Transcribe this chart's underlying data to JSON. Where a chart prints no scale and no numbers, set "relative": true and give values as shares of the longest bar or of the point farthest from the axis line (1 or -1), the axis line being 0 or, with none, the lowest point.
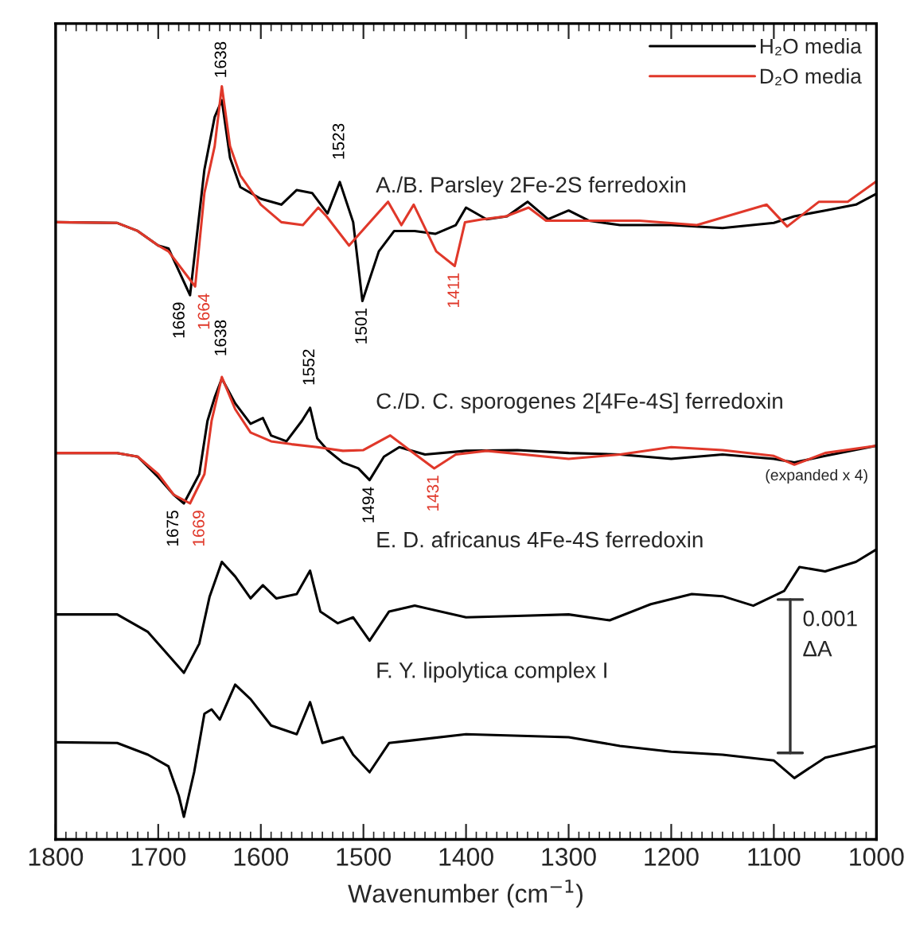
{
  "chart_data": {
    "type": "line",
    "relative": true,
    "xlabel": "Wavenumber (cm$^{−1}$)",
    "xlim": [
      1800,
      1000
    ],
    "xticks": [
      1800,
      1700,
      1600,
      1500,
      1400,
      1300,
      1200,
      1100,
      1000
    ],
    "tick_labels": "x",
    "grid": false,
    "legend": "top right",
    "series": [
      {
        "name": "H₂O media",
        "color": "#000000",
        "x": [
          1800,
          1740,
          1720,
          1700,
          1690,
          1669,
          1655,
          1645,
          1638,
          1630,
          1620,
          1600,
          1580,
          1565,
          1550,
          1535,
          1523,
          1510,
          1501,
          1485,
          1470,
          1450,
          1430,
          1410,
          1400,
          1380,
          1360,
          1340,
          1320,
          1300,
          1280,
          1250,
          1200,
          1150,
          1100,
          1080,
          1050,
          1020,
          1000
        ],
        "values": [
          0.814,
          0.813,
          0.802,
          0.782,
          0.778,
          0.714,
          0.886,
          0.958,
          0.981,
          0.902,
          0.862,
          0.846,
          0.838,
          0.858,
          0.854,
          0.826,
          0.869,
          0.814,
          0.706,
          0.774,
          0.802,
          0.802,
          0.798,
          0.81,
          0.834,
          0.818,
          0.822,
          0.842,
          0.818,
          0.83,
          0.816,
          0.81,
          0.81,
          0.806,
          0.813,
          0.822,
          0.83,
          0.838,
          0.853
        ]
      },
      {
        "name": "D₂O media",
        "color": "#e0382a",
        "x": [
          1800,
          1740,
          1720,
          1700,
          1690,
          1664,
          1655,
          1645,
          1638,
          1630,
          1620,
          1600,
          1580,
          1559,
          1544,
          1536,
          1514,
          1476,
          1463,
          1451,
          1429,
          1411,
          1401,
          1384,
          1361,
          1339,
          1322,
          1288,
          1231,
          1175,
          1107,
          1087,
          1056,
          1028,
          1000
        ],
        "values": [
          0.814,
          0.813,
          0.802,
          0.782,
          0.774,
          0.726,
          0.854,
          0.918,
          1.0,
          0.918,
          0.878,
          0.838,
          0.814,
          0.81,
          0.834,
          0.822,
          0.782,
          0.842,
          0.81,
          0.838,
          0.774,
          0.754,
          0.814,
          0.818,
          0.822,
          0.834,
          0.816,
          0.816,
          0.816,
          0.81,
          0.838,
          0.808,
          0.842,
          0.842,
          0.87
        ]
      },
      {
        "color": "#000000",
        "x": [
          1800,
          1740,
          1720,
          1700,
          1685,
          1675,
          1660,
          1652,
          1645,
          1638,
          1625,
          1610,
          1598,
          1590,
          1575,
          1560,
          1552,
          1545,
          1535,
          1520,
          1505,
          1494,
          1480,
          1465,
          1440,
          1400,
          1350,
          1300,
          1250,
          1200,
          1150,
          1100,
          1080,
          1050,
          1000
        ],
        "values": [
          0.498,
          0.498,
          0.493,
          0.465,
          0.441,
          0.429,
          0.469,
          0.542,
          0.574,
          0.6,
          0.566,
          0.538,
          0.546,
          0.522,
          0.514,
          0.542,
          0.56,
          0.518,
          0.502,
          0.485,
          0.477,
          0.461,
          0.493,
          0.506,
          0.496,
          0.501,
          0.502,
          0.498,
          0.496,
          0.49,
          0.496,
          0.49,
          0.485,
          0.494,
          0.508
        ]
      },
      {
        "color": "#e0382a",
        "x": [
          1800,
          1740,
          1720,
          1700,
          1685,
          1669,
          1655,
          1648,
          1638,
          1625,
          1610,
          1590,
          1570,
          1545,
          1520,
          1500,
          1474,
          1455,
          1431,
          1410,
          1380,
          1300,
          1250,
          1200,
          1150,
          1100,
          1080,
          1050,
          1000
        ],
        "values": [
          0.498,
          0.498,
          0.493,
          0.469,
          0.441,
          0.429,
          0.469,
          0.542,
          0.602,
          0.558,
          0.526,
          0.514,
          0.51,
          0.506,
          0.501,
          0.502,
          0.522,
          0.502,
          0.477,
          0.496,
          0.501,
          0.49,
          0.496,
          0.506,
          0.502,
          0.494,
          0.482,
          0.498,
          0.508
        ]
      },
      {
        "color": "#000000",
        "x": [
          1800,
          1740,
          1710,
          1690,
          1675,
          1660,
          1650,
          1638,
          1625,
          1610,
          1598,
          1585,
          1565,
          1552,
          1542,
          1525,
          1510,
          1494,
          1475,
          1450,
          1400,
          1350,
          1300,
          1260,
          1220,
          1180,
          1150,
          1120,
          1090,
          1075,
          1050,
          1020,
          1000
        ],
        "values": [
          0.277,
          0.277,
          0.253,
          0.221,
          0.197,
          0.237,
          0.301,
          0.349,
          0.329,
          0.299,
          0.317,
          0.299,
          0.305,
          0.337,
          0.281,
          0.265,
          0.273,
          0.241,
          0.281,
          0.289,
          0.273,
          0.275,
          0.277,
          0.269,
          0.291,
          0.305,
          0.302,
          0.289,
          0.309,
          0.342,
          0.336,
          0.349,
          0.366
        ]
      },
      {
        "color": "#000000",
        "x": [
          1800,
          1740,
          1710,
          1690,
          1680,
          1675,
          1665,
          1655,
          1648,
          1640,
          1625,
          1610,
          1590,
          1565,
          1552,
          1540,
          1520,
          1510,
          1494,
          1475,
          1450,
          1400,
          1300,
          1250,
          1200,
          1150,
          1100,
          1080,
          1050,
          1000
        ],
        "values": [
          0.102,
          0.101,
          0.085,
          0.069,
          0.029,
          0.0,
          0.061,
          0.141,
          0.147,
          0.133,
          0.181,
          0.161,
          0.125,
          0.113,
          0.157,
          0.101,
          0.109,
          0.085,
          0.061,
          0.101,
          0.105,
          0.113,
          0.109,
          0.097,
          0.089,
          0.085,
          0.077,
          0.053,
          0.081,
          0.097
        ]
      }
    ],
    "annotations": [
      {
        "text": "1638",
        "x": 1638,
        "y": 0.981
      },
      {
        "text": "1669",
        "x": 1669,
        "y": 0.714
      },
      {
        "text": "1664",
        "x": 1664,
        "y": 0.726
      },
      {
        "text": "1523",
        "x": 1523,
        "y": 0.869
      },
      {
        "text": "1501",
        "x": 1501,
        "y": 0.706
      },
      {
        "text": "1411",
        "x": 1411,
        "y": 0.754
      },
      {
        "text": "1638",
        "x": 1638,
        "y": 0.6
      },
      {
        "text": "1552",
        "x": 1552,
        "y": 0.56
      },
      {
        "text": "1675",
        "x": 1675,
        "y": 0.429
      },
      {
        "text": "1669",
        "x": 1669,
        "y": 0.429
      },
      {
        "text": "1494",
        "x": 1494,
        "y": 0.461
      },
      {
        "text": "1431",
        "x": 1431,
        "y": 0.477
      },
      "A./B. Parsley 2Fe-2S ferredoxin",
      "C./D. C. sporogenes 2[4Fe-4S] ferredoxin",
      "(expanded x 4)",
      "E. D. africanus 4Fe-4S ferredoxin",
      "F. Y. lipolytica complex I",
      "0.001\nΔA"
    ]
  }
}
